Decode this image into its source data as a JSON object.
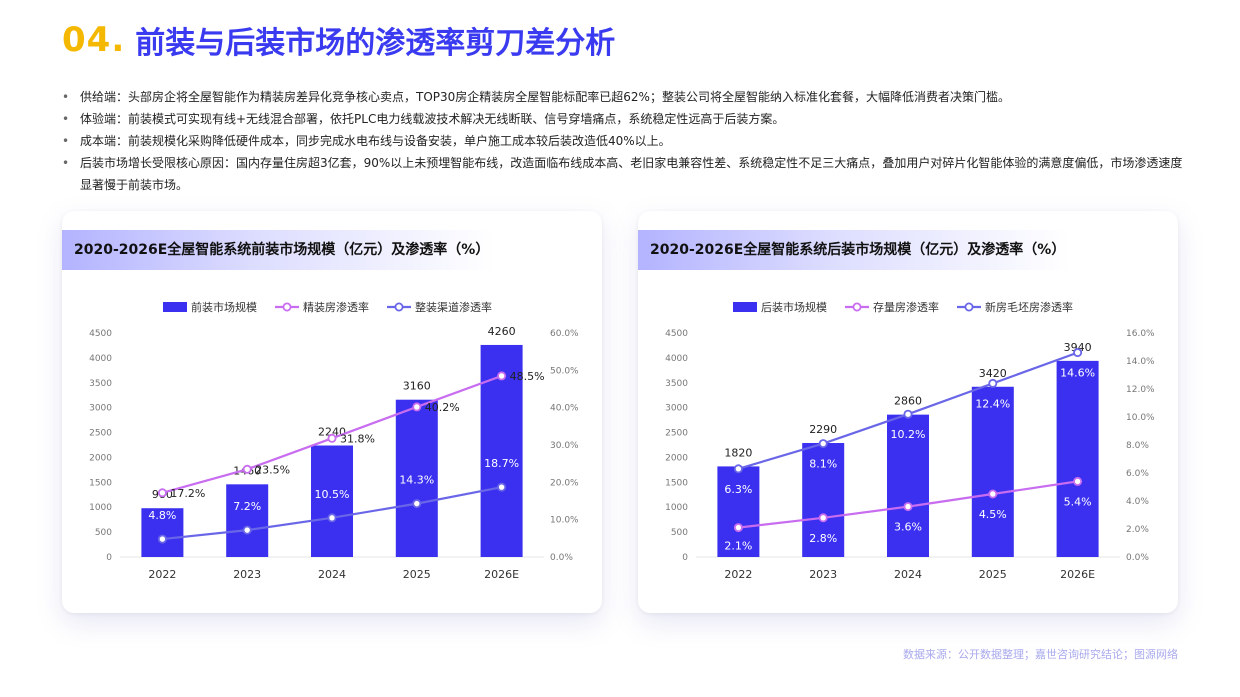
{
  "header": {
    "number": "04.",
    "title": "前装与后装市场的渗透率剪刀差分析"
  },
  "bullets": [
    "供给端：头部房企将全屋智能作为精装房差异化竞争核心卖点，TOP30房企精装房全屋智能标配率已超62%；整装公司将全屋智能纳入标准化套餐，大幅降低消费者决策门槛。",
    "体验端：前装模式可实现有线+无线混合部署，依托PLC电力线载波技术解决无线断联、信号穿墙痛点，系统稳定性远高于后装方案。",
    "成本端：前装规模化采购降低硬件成本，同步完成水电布线与设备安装，单户施工成本较后装改造低40%以上。",
    "后装市场增长受限核心原因：国内存量住房超3亿套，90%以上未预埋智能布线，改造面临布线成本高、老旧家电兼容性差、系统稳定性不足三大痛点，叠加用户对碎片化智能体验的满意度偏低，市场渗透速度显著慢于前装市场。"
  ],
  "colors": {
    "bar": "#3b30f0",
    "line_purple": "#c86cf0",
    "line_blue": "#6a66e8",
    "title_num": "#f5b800",
    "title_text": "#3a3af0"
  },
  "chart_data": [
    {
      "type": "bar+line",
      "title": "2020-2026E全屋智能系统前装市场规模（亿元）及渗透率（%）",
      "categories": [
        "2022",
        "2023",
        "2024",
        "2025",
        "2026E"
      ],
      "y_left": {
        "ticks": [
          "0",
          "500",
          "1000",
          "1500",
          "2000",
          "2500",
          "3000",
          "3500",
          "4000",
          "4500"
        ],
        "range": [
          0,
          4500
        ]
      },
      "y_right": {
        "ticks": [
          "0.0%",
          "10.0%",
          "20.0%",
          "30.0%",
          "40.0%",
          "50.0%",
          "60.0%"
        ],
        "range": [
          0,
          60
        ]
      },
      "series": [
        {
          "name": "前装市场规模",
          "kind": "bar",
          "values": [
            980,
            1460,
            2240,
            3160,
            4260
          ],
          "labels": [
            "980",
            "1460",
            "2240",
            "3160",
            "4260"
          ]
        },
        {
          "name": "精装房渗透率",
          "kind": "line",
          "color": "#c86cf0",
          "values": [
            17.2,
            23.5,
            31.8,
            40.2,
            48.5
          ],
          "labels": [
            "17.2%",
            "23.5%",
            "31.8%",
            "40.2%",
            "48.5%"
          ]
        },
        {
          "name": "整装渠道渗透率",
          "kind": "line",
          "color": "#6a66e8",
          "values": [
            4.8,
            7.2,
            10.5,
            14.3,
            18.7
          ],
          "labels": [
            "4.8%",
            "7.2%",
            "10.5%",
            "14.3%",
            "18.7%"
          ]
        }
      ],
      "legend": "top-center",
      "grid": false
    },
    {
      "type": "bar+line",
      "title": "2020-2026E全屋智能系统后装市场规模（亿元）及渗透率（%）",
      "categories": [
        "2022",
        "2023",
        "2024",
        "2025",
        "2026E"
      ],
      "y_left": {
        "ticks": [
          "0",
          "500",
          "1000",
          "1500",
          "2000",
          "2500",
          "3000",
          "3500",
          "4000",
          "4500"
        ],
        "range": [
          0,
          4500
        ]
      },
      "y_right": {
        "ticks": [
          "0.0%",
          "2.0%",
          "4.0%",
          "6.0%",
          "8.0%",
          "10.0%",
          "12.0%",
          "14.0%",
          "16.0%"
        ],
        "range": [
          0,
          16
        ]
      },
      "series": [
        {
          "name": "后装市场规模",
          "kind": "bar",
          "values": [
            1820,
            2290,
            2860,
            3420,
            3940
          ],
          "labels": [
            "1820",
            "2290",
            "2860",
            "3420",
            "3940"
          ]
        },
        {
          "name": "存量房渗透率",
          "kind": "line",
          "color": "#c86cf0",
          "values": [
            2.1,
            2.8,
            3.6,
            4.5,
            5.4
          ],
          "labels": [
            "2.1%",
            "2.8%",
            "3.6%",
            "4.5%",
            "5.4%"
          ]
        },
        {
          "name": "新房毛坯房渗透率",
          "kind": "line",
          "color": "#6a66e8",
          "values": [
            6.3,
            8.1,
            10.2,
            12.4,
            14.6
          ],
          "labels": [
            "6.3%",
            "8.1%",
            "10.2%",
            "12.4%",
            "14.6%"
          ]
        }
      ],
      "legend": "top-center",
      "grid": false
    }
  ],
  "footer": {
    "source": "数据来源：公开数据整理；嘉世咨询研究结论；图源网络"
  }
}
